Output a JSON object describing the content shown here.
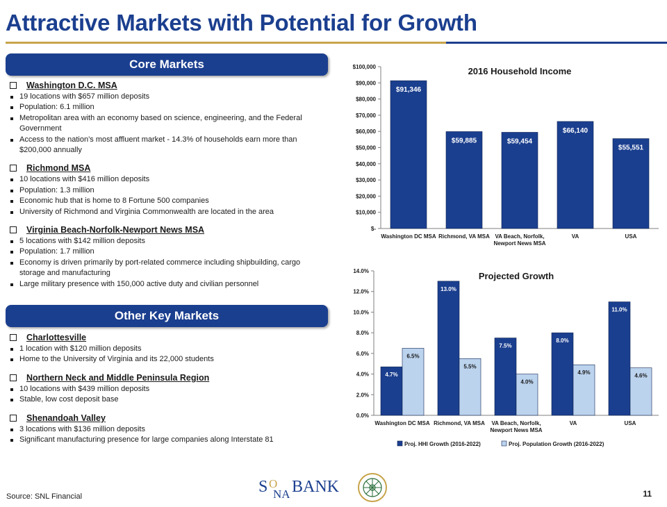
{
  "page": {
    "title": "Attractive Markets with Potential for Growth",
    "source": "Source: SNL Financial",
    "page_number": "11"
  },
  "core": {
    "heading": "Core Markets",
    "markets": [
      {
        "name": "Washington D.C. MSA",
        "bullets": [
          "19 locations with $657 million deposits",
          "Population: 6.1 million",
          "Metropolitan area with an economy based on science, engineering, and the Federal Government",
          "Access to the  nation’s most affluent market - 14.3% of households earn more than $200,000 annually"
        ]
      },
      {
        "name": "Richmond MSA",
        "bullets": [
          "10 locations with $416 million deposits",
          "Population: 1.3 million",
          "Economic hub that is home to 8 Fortune 500 companies",
          "University of Richmond and Virginia Commonwealth are located in the  area"
        ]
      },
      {
        "name": "Virginia Beach-Norfolk-Newport News MSA",
        "bullets": [
          "5 locations with $142 million deposits",
          "Population: 1.7 million",
          "Economy  is driven primarily by port-related commerce  including shipbuilding, cargo storage and manufacturing",
          "Large military presence with 150,000 active duty and civilian personnel"
        ]
      }
    ]
  },
  "other": {
    "heading": "Other Key Markets",
    "markets": [
      {
        "name": "Charlottesville",
        "bullets": [
          "1 location with $120 million deposits",
          "Home  to the University of Virginia and its 22,000 students"
        ]
      },
      {
        "name": "Northern Neck and Middle Peninsula Region",
        "bullets": [
          "10 locations with $439 million deposits",
          "Stable, low cost deposit base"
        ]
      },
      {
        "name": "Shenandoah Valley",
        "bullets": [
          "3 locations with $136 million deposits",
          "Significant manufacturing presence for large companies along Interstate 81"
        ]
      }
    ]
  },
  "logo": {
    "text_s": "S",
    "text_o": "O",
    "text_na": "NA",
    "text_bank": "BANK",
    "seal_text": "EASTERN VIRGINIA BANKSHARES"
  },
  "colors": {
    "brand_blue": "#1b3f8f",
    "bar_dark": "#1b3f8f",
    "bar_light": "#bcd3ee",
    "gold": "#c7a44a"
  },
  "chart_data": [
    {
      "type": "bar",
      "title": "2016 Household Income",
      "categories": [
        "Washington DC MSA",
        "Richmond, VA MSA",
        "VA Beach, Norfolk, Newport News MSA",
        "VA",
        "USA"
      ],
      "category_lines": [
        [
          "Washington DC MSA"
        ],
        [
          "Richmond, VA MSA"
        ],
        [
          "VA Beach, Norfolk,",
          "Newport News MSA"
        ],
        [
          "VA"
        ],
        [
          "USA"
        ]
      ],
      "values": [
        91346,
        59885,
        59454,
        66140,
        55551
      ],
      "value_labels": [
        "$91,346",
        "$59,885",
        "$59,454",
        "$66,140",
        "$55,551"
      ],
      "ylim": [
        0,
        100000
      ],
      "yticks": [
        0,
        10000,
        20000,
        30000,
        40000,
        50000,
        60000,
        70000,
        80000,
        90000,
        100000
      ],
      "ytick_labels": [
        "$-",
        "$10,000",
        "$20,000",
        "$30,000",
        "$40,000",
        "$50,000",
        "$60,000",
        "$70,000",
        "$80,000",
        "$90,000",
        "$100,000"
      ],
      "grid": false,
      "legend": "none"
    },
    {
      "type": "bar",
      "title": "Projected Growth",
      "categories": [
        "Washington DC MSA",
        "Richmond, VA MSA",
        "VA Beach, Norfolk, Newport News MSA",
        "VA",
        "USA"
      ],
      "category_lines": [
        [
          "Washington DC MSA"
        ],
        [
          "Richmond, VA MSA"
        ],
        [
          "VA Beach, Norfolk,",
          "Newport News MSA"
        ],
        [
          "VA"
        ],
        [
          "USA"
        ]
      ],
      "series": [
        {
          "name": "Proj. HHI Growth (2016-2022)",
          "values": [
            4.7,
            13.0,
            7.5,
            8.0,
            11.0
          ],
          "value_labels": [
            "4.7%",
            "13.0%",
            "7.5%",
            "8.0%",
            "11.0%"
          ]
        },
        {
          "name": "Proj. Population Growth (2016-2022)",
          "values": [
            6.5,
            5.5,
            4.0,
            4.9,
            4.6
          ],
          "value_labels": [
            "6.5%",
            "5.5%",
            "4.0%",
            "4.9%",
            "4.6%"
          ]
        }
      ],
      "ylim": [
        0,
        14
      ],
      "yticks": [
        0,
        2,
        4,
        6,
        8,
        10,
        12,
        14
      ],
      "ytick_labels": [
        "0.0%",
        "2.0%",
        "4.0%",
        "6.0%",
        "8.0%",
        "10.0%",
        "12.0%",
        "14.0%"
      ],
      "grid": false,
      "legend": "bottom"
    }
  ]
}
